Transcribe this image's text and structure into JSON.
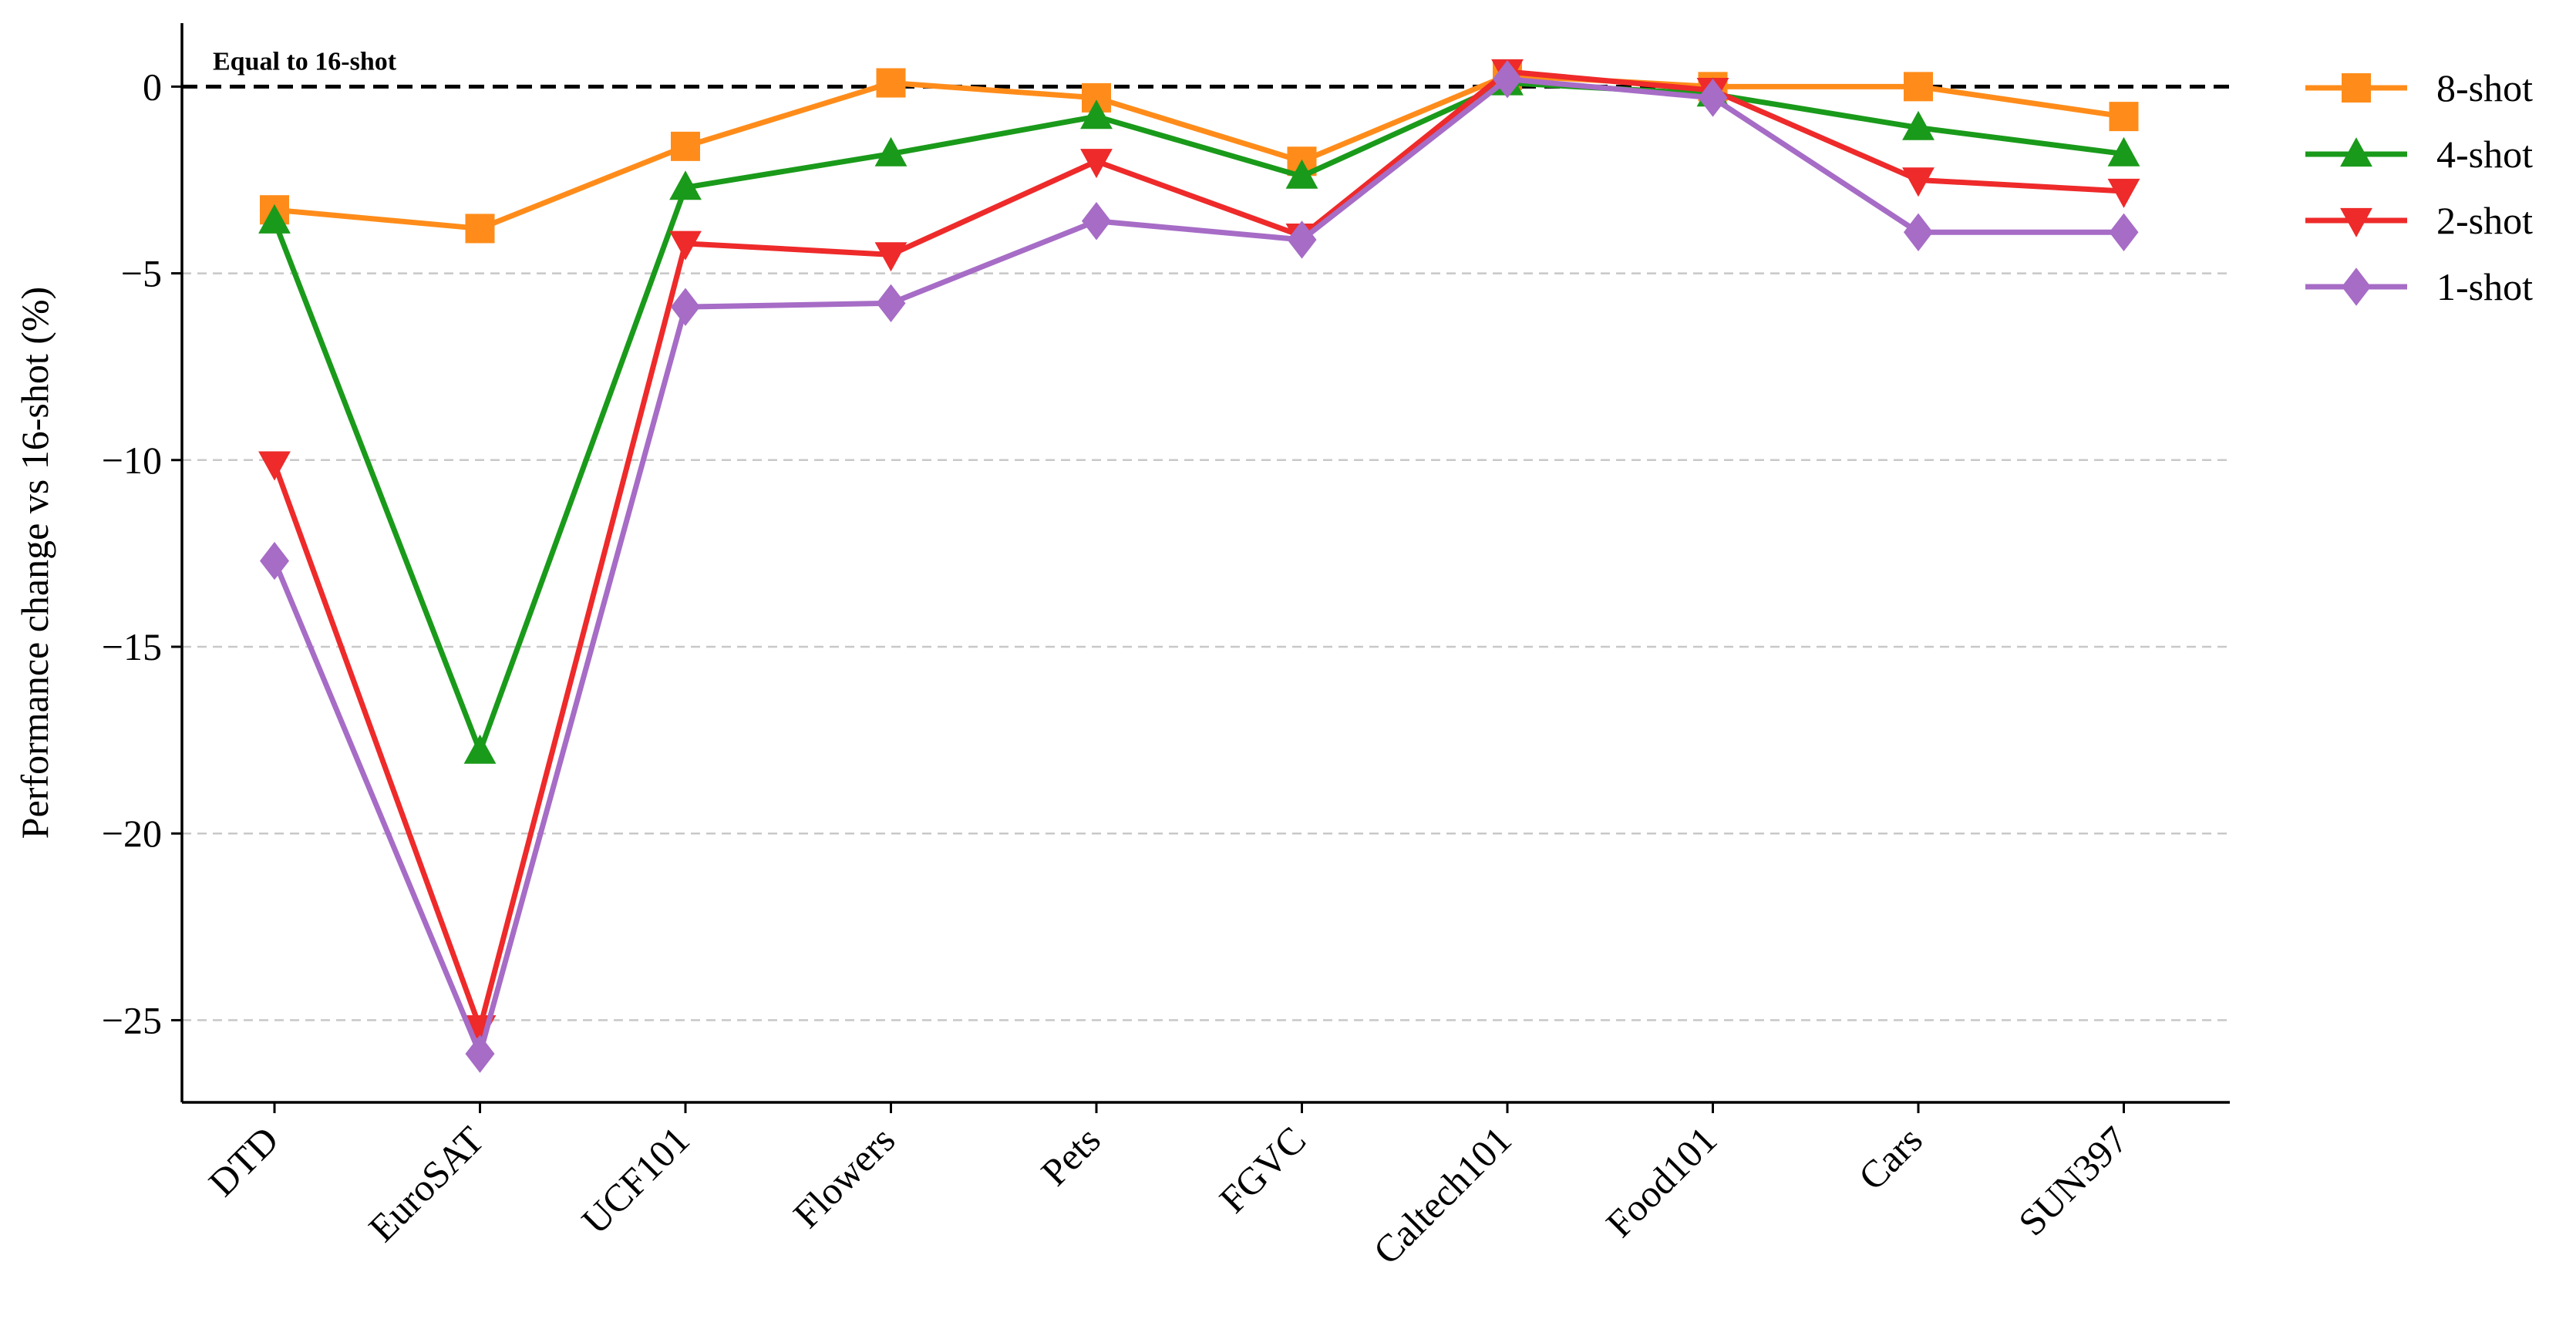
{
  "chart_data": {
    "type": "line",
    "title": "",
    "xlabel": "",
    "ylabel": "Performance change vs 16-shot (%)",
    "categories": [
      "DTD",
      "EuroSAT",
      "UCF101",
      "Flowers",
      "Pets",
      "FGVC",
      "Caltech101",
      "Food101",
      "Cars",
      "SUN397"
    ],
    "ylim": [
      -27.2,
      1.7
    ],
    "yticks": [
      0,
      -5,
      -10,
      -15,
      -20,
      -25
    ],
    "ytick_labels": [
      "0",
      "−5",
      "−10",
      "−15",
      "−20",
      "−25"
    ],
    "grid": "horizontal dashed",
    "legend_position": "right, outside plot area",
    "reference_line": {
      "value": 0,
      "label": "Equal to 16-shot",
      "style": "dashed black"
    },
    "series": [
      {
        "name": "8-shot",
        "color": "#ff8c1a",
        "marker": "square",
        "values": [
          -3.3,
          -3.8,
          -1.6,
          0.1,
          -0.3,
          -2.0,
          0.3,
          0.0,
          0.0,
          -0.8
        ]
      },
      {
        "name": "4-shot",
        "color": "#1a9a1a",
        "marker": "triangle-up",
        "values": [
          -3.6,
          -17.8,
          -2.7,
          -1.8,
          -0.8,
          -2.4,
          0.1,
          -0.2,
          -1.1,
          -1.8
        ]
      },
      {
        "name": "2-shot",
        "color": "#ee2a2a",
        "marker": "triangle-down",
        "values": [
          -10.1,
          -25.2,
          -4.2,
          -4.5,
          -2.0,
          -4.0,
          0.4,
          -0.1,
          -2.5,
          -2.8
        ]
      },
      {
        "name": "1-shot",
        "color": "#a66cc6",
        "marker": "diamond",
        "values": [
          -12.7,
          -25.9,
          -5.9,
          -5.8,
          -3.6,
          -4.1,
          0.2,
          -0.3,
          -3.9,
          -3.9
        ]
      }
    ]
  }
}
